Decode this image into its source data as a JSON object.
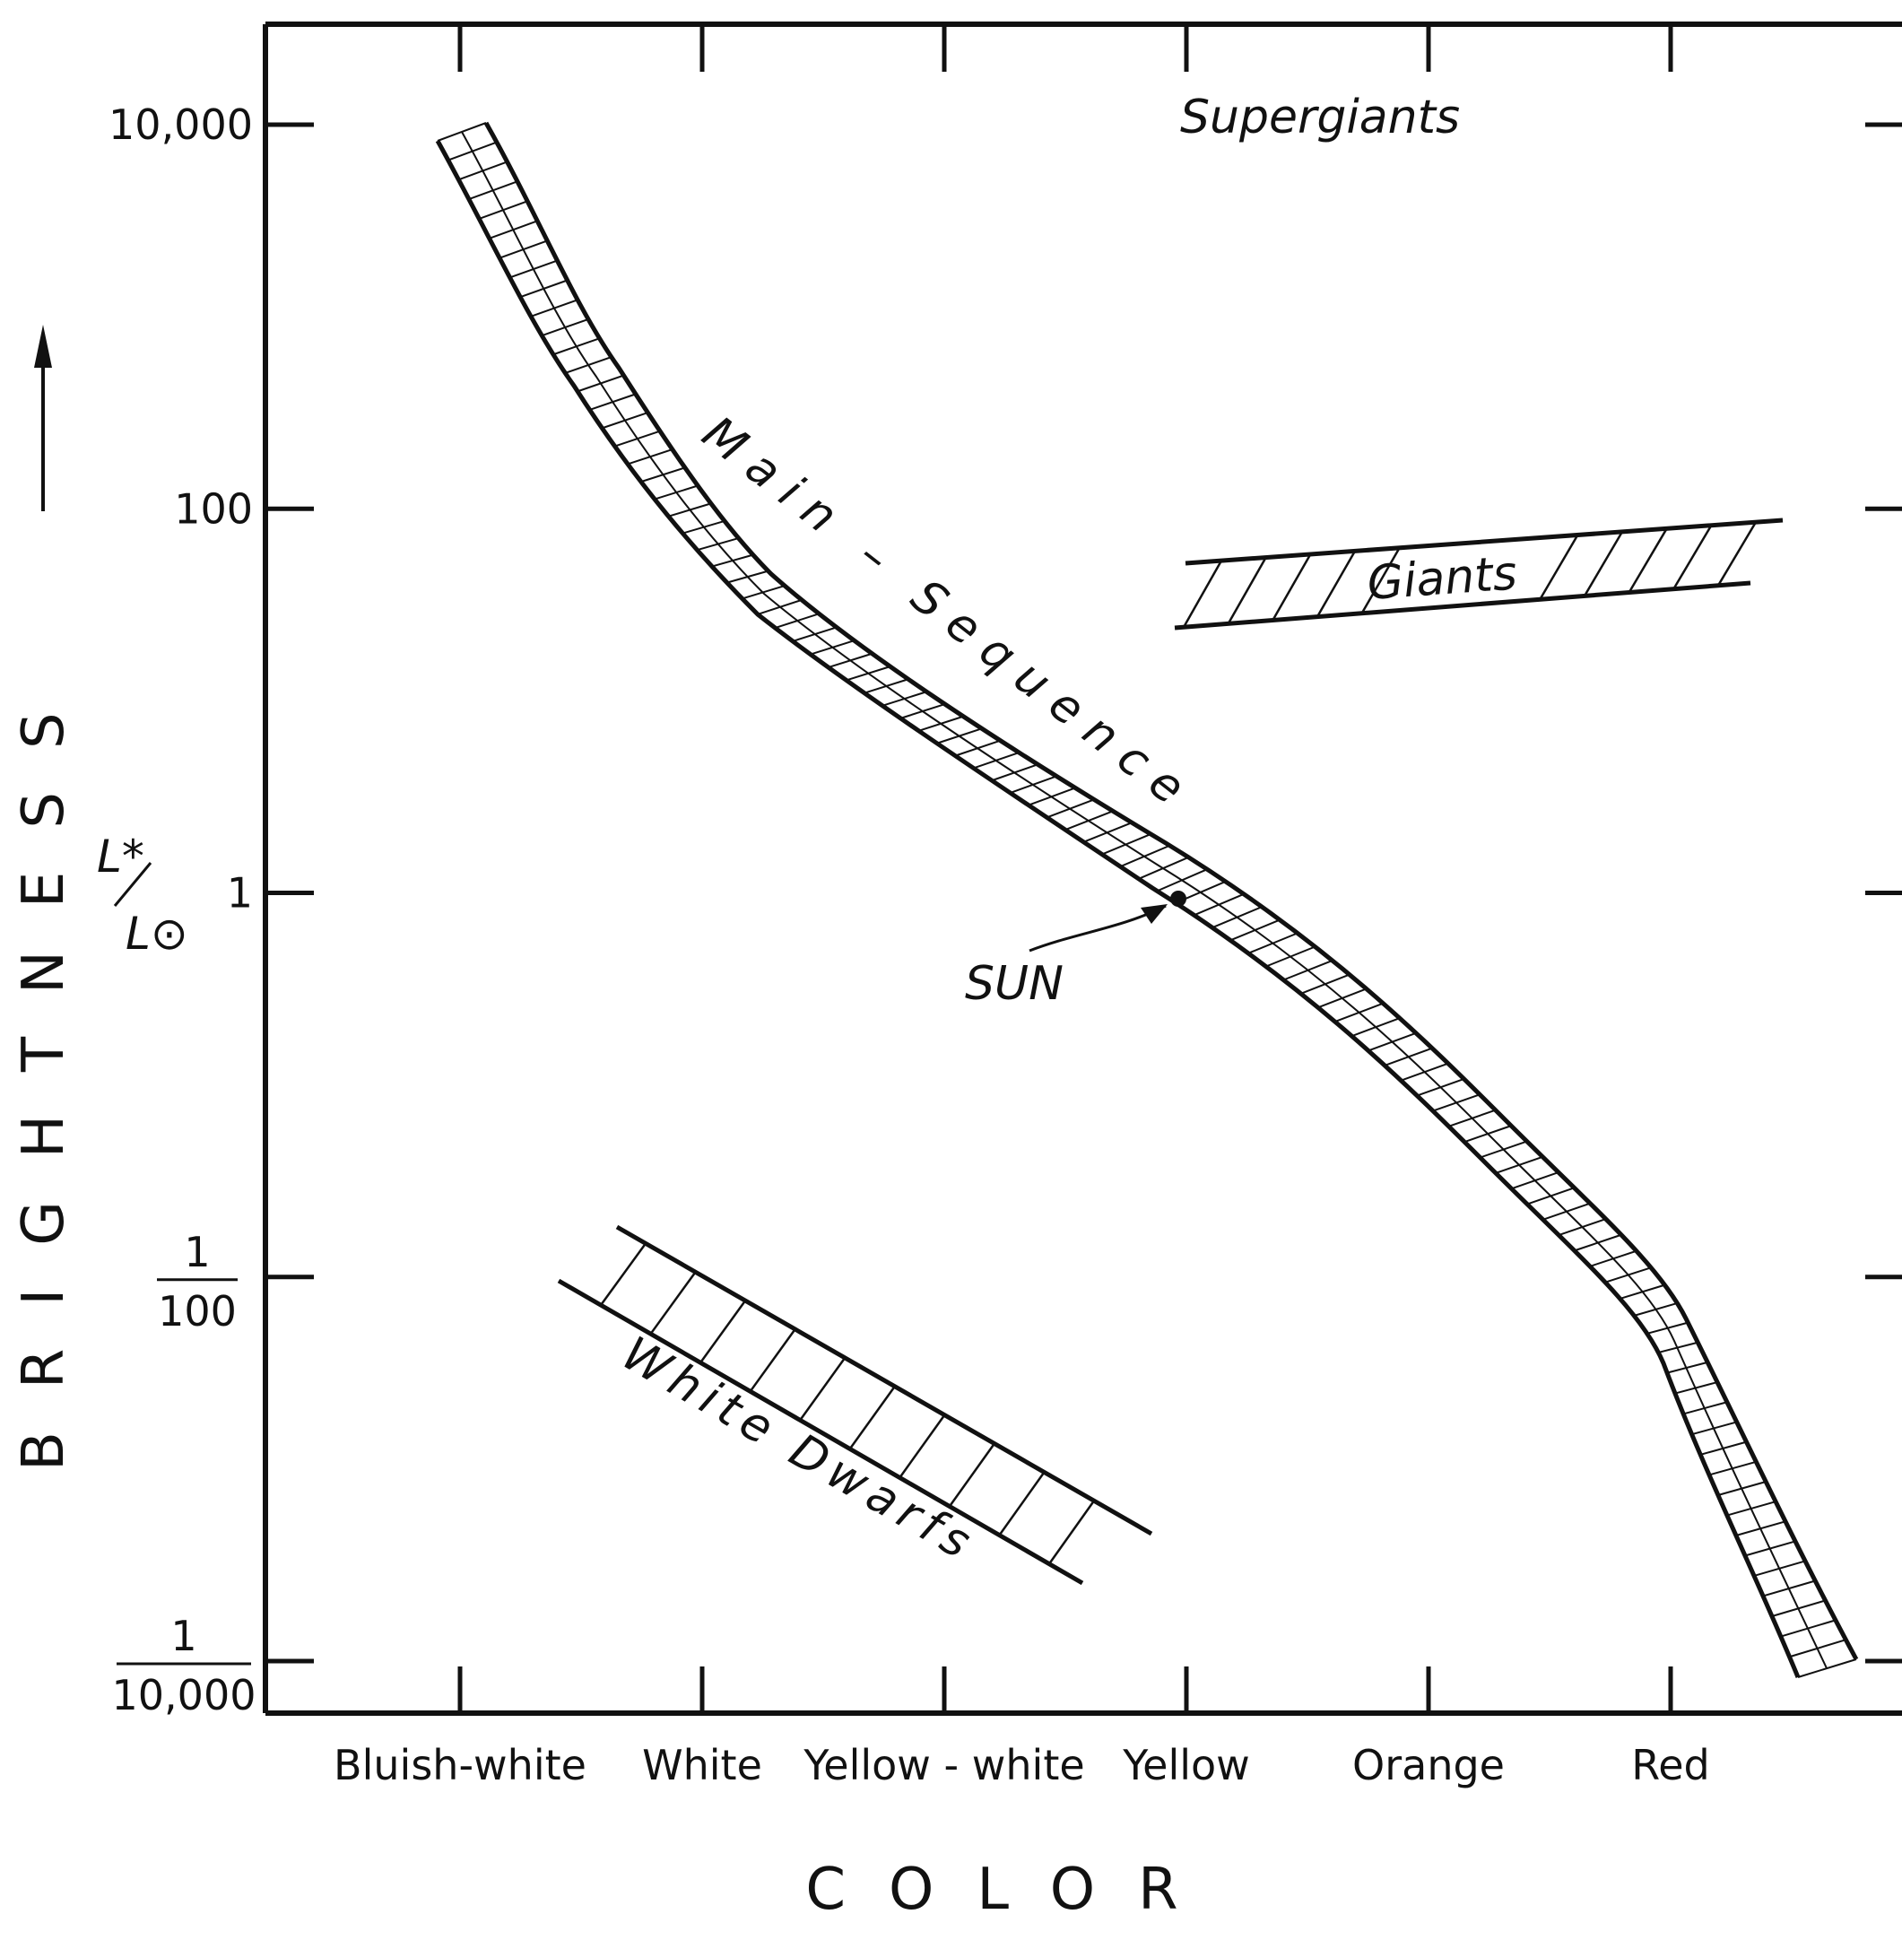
{
  "chart_data": {
    "type": "diagram",
    "title": "",
    "xlabel": "COLOR",
    "ylabel": "BRIGHTNESS",
    "ylabel_arrow": "up",
    "y_unit": {
      "numerator": "L*",
      "denominator": "L⊙"
    },
    "y_scale": "log",
    "ylim": [
      0.0001,
      10000
    ],
    "y_ticks": [
      {
        "value": 10000,
        "label": "10,000"
      },
      {
        "value": 100,
        "label": "100"
      },
      {
        "value": 1,
        "label": "1"
      },
      {
        "value": 0.01,
        "label": {
          "numerator": "1",
          "denominator": "100"
        }
      },
      {
        "value": 0.0001,
        "label": {
          "numerator": "1",
          "denominator": "10,000"
        }
      }
    ],
    "categories": [
      "Bluish-white",
      "White",
      "Yellow - white",
      "Yellow",
      "Orange",
      "Red"
    ],
    "grid": false,
    "regions": [
      {
        "name": "Supergiants"
      },
      {
        "name": "Giants"
      },
      {
        "name": "Main – Sequence"
      },
      {
        "name": "White Dwarfs"
      }
    ],
    "annotations": [
      {
        "text": "SUN",
        "x": "Yellow",
        "y": 1
      }
    ]
  }
}
